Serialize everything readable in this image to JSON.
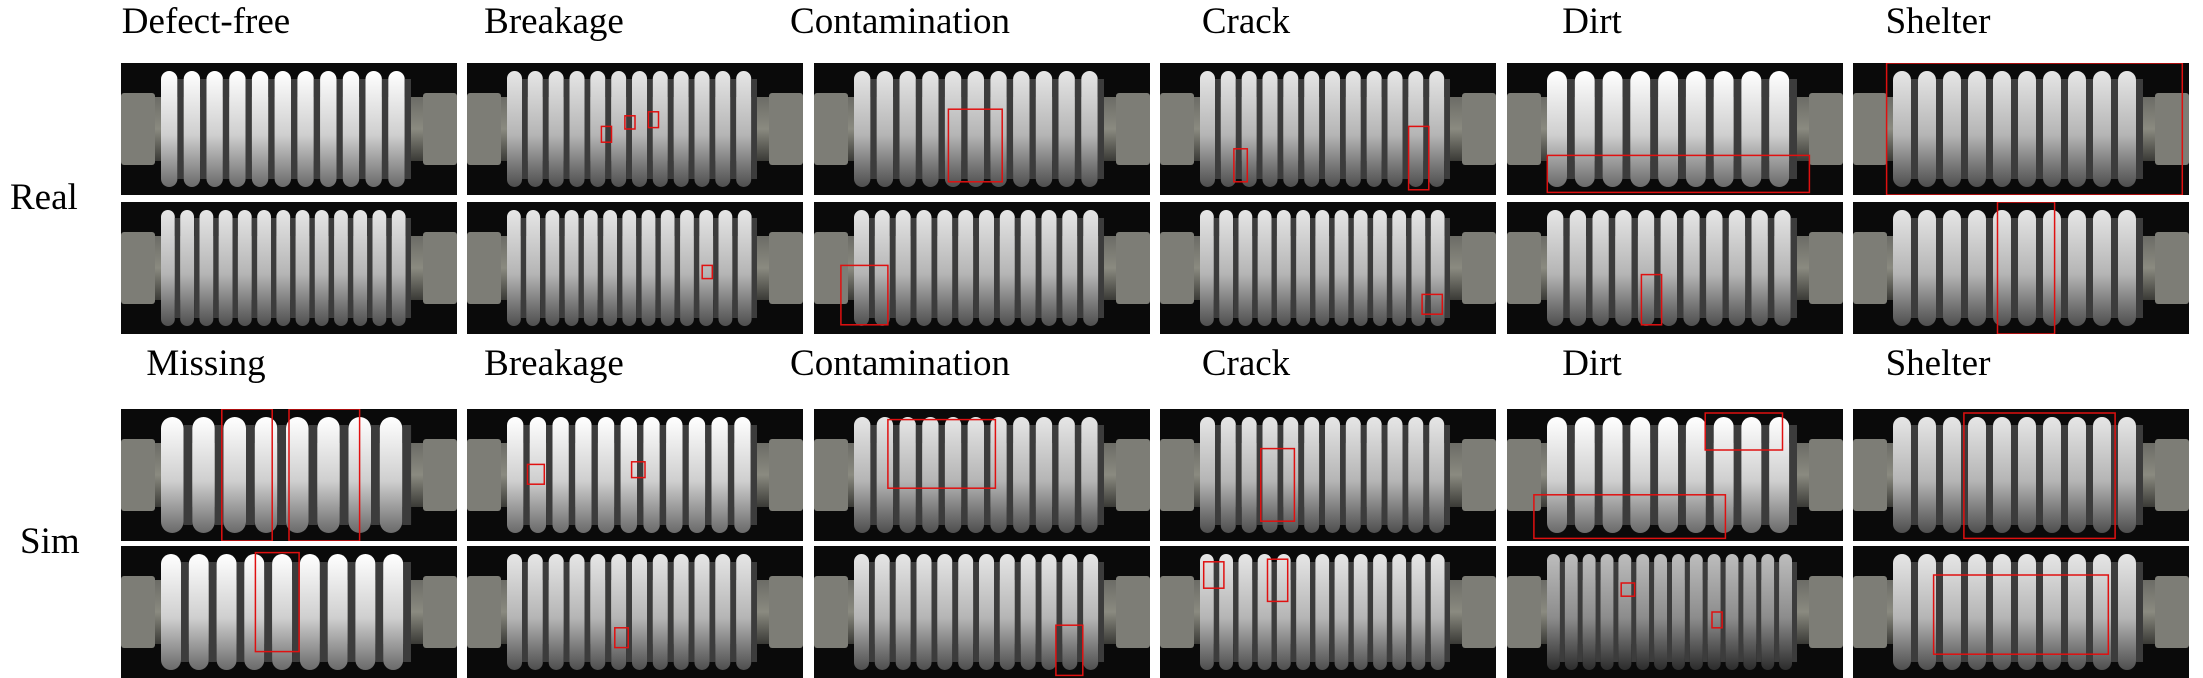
{
  "real_section": {
    "row_label": "Real",
    "column_titles": [
      "Defect-free",
      "Breakage",
      "Contamination",
      "Crack",
      "Dirt",
      "Shelter"
    ]
  },
  "sim_section": {
    "row_label": "Sim",
    "column_titles": [
      "Missing",
      "Breakage",
      "Contamination",
      "Crack",
      "Dirt",
      "Shelter"
    ]
  },
  "colors": {
    "annotation_box": "#e01010",
    "background": "#000000",
    "insulator_shed": "#d9d9d9",
    "rod": "#8a8a80"
  },
  "images": [
    {
      "name": "real-defect-free-1",
      "shed_count": 11,
      "brightness": "light",
      "boxes": []
    },
    {
      "name": "real-breakage-1",
      "shed_count": 12,
      "brightness": "mid",
      "boxes": [
        [
          0.4,
          0.48,
          0.03,
          0.12
        ],
        [
          0.47,
          0.4,
          0.03,
          0.1
        ],
        [
          0.54,
          0.37,
          0.03,
          0.12
        ]
      ]
    },
    {
      "name": "real-contamination-1",
      "shed_count": 11,
      "brightness": "mid",
      "boxes": [
        [
          0.4,
          0.35,
          0.16,
          0.55
        ]
      ]
    },
    {
      "name": "real-crack-1",
      "shed_count": 12,
      "brightness": "mid",
      "boxes": [
        [
          0.22,
          0.65,
          0.04,
          0.25
        ],
        [
          0.74,
          0.48,
          0.06,
          0.48
        ]
      ]
    },
    {
      "name": "real-dirt-1",
      "shed_count": 9,
      "brightness": "light",
      "boxes": [
        [
          0.12,
          0.7,
          0.78,
          0.28
        ]
      ]
    },
    {
      "name": "real-shelter-1",
      "shed_count": 10,
      "brightness": "mid",
      "boxes": [
        [
          0.1,
          0.0,
          0.88,
          1.0
        ]
      ]
    },
    {
      "name": "real-defect-free-2",
      "shed_count": 13,
      "brightness": "mid",
      "boxes": []
    },
    {
      "name": "real-breakage-2",
      "shed_count": 13,
      "brightness": "mid",
      "boxes": [
        [
          0.7,
          0.48,
          0.03,
          0.1
        ]
      ]
    },
    {
      "name": "real-contamination-2",
      "shed_count": 12,
      "brightness": "mid",
      "boxes": [
        [
          0.08,
          0.48,
          0.14,
          0.45
        ]
      ]
    },
    {
      "name": "real-crack-2",
      "shed_count": 13,
      "brightness": "mid",
      "boxes": [
        [
          0.78,
          0.7,
          0.06,
          0.15
        ]
      ]
    },
    {
      "name": "real-dirt-2",
      "shed_count": 11,
      "brightness": "mid",
      "boxes": [
        [
          0.4,
          0.55,
          0.06,
          0.38
        ]
      ]
    },
    {
      "name": "real-shelter-2",
      "shed_count": 10,
      "brightness": "mid",
      "boxes": [
        [
          0.43,
          0.0,
          0.17,
          1.0
        ]
      ]
    },
    {
      "name": "sim-missing-1",
      "shed_count": 8,
      "brightness": "light",
      "boxes": [
        [
          0.3,
          0.0,
          0.15,
          1.0
        ],
        [
          0.5,
          0.0,
          0.21,
          1.0
        ]
      ]
    },
    {
      "name": "sim-breakage-1",
      "shed_count": 11,
      "brightness": "light",
      "boxes": [
        [
          0.18,
          0.42,
          0.05,
          0.15
        ],
        [
          0.49,
          0.4,
          0.04,
          0.12
        ]
      ]
    },
    {
      "name": "sim-contamination-1",
      "shed_count": 11,
      "brightness": "mid",
      "boxes": [
        [
          0.22,
          0.08,
          0.32,
          0.52
        ]
      ]
    },
    {
      "name": "sim-crack-1",
      "shed_count": 12,
      "brightness": "mid",
      "boxes": [
        [
          0.3,
          0.3,
          0.1,
          0.55
        ]
      ]
    },
    {
      "name": "sim-dirt-1",
      "shed_count": 9,
      "brightness": "light",
      "boxes": [
        [
          0.08,
          0.65,
          0.57,
          0.33
        ],
        [
          0.59,
          0.03,
          0.23,
          0.28
        ]
      ]
    },
    {
      "name": "sim-shelter-1",
      "shed_count": 10,
      "brightness": "mid",
      "boxes": [
        [
          0.33,
          0.03,
          0.45,
          0.95
        ]
      ]
    },
    {
      "name": "sim-missing-2",
      "shed_count": 9,
      "brightness": "light",
      "boxes": [
        [
          0.4,
          0.05,
          0.13,
          0.75
        ]
      ]
    },
    {
      "name": "sim-breakage-2",
      "shed_count": 12,
      "brightness": "mid",
      "boxes": [
        [
          0.44,
          0.62,
          0.04,
          0.15
        ]
      ]
    },
    {
      "name": "sim-contamination-2",
      "shed_count": 12,
      "brightness": "mid",
      "boxes": [
        [
          0.72,
          0.6,
          0.08,
          0.38
        ]
      ]
    },
    {
      "name": "sim-crack-2",
      "shed_count": 13,
      "brightness": "mid",
      "boxes": [
        [
          0.13,
          0.12,
          0.06,
          0.2
        ],
        [
          0.32,
          0.1,
          0.06,
          0.32
        ]
      ]
    },
    {
      "name": "sim-dirt-2",
      "shed_count": 14,
      "brightness": "dark",
      "boxes": [
        [
          0.34,
          0.28,
          0.04,
          0.1
        ],
        [
          0.61,
          0.5,
          0.03,
          0.12
        ]
      ]
    },
    {
      "name": "sim-shelter-2",
      "shed_count": 10,
      "brightness": "mid",
      "boxes": [
        [
          0.24,
          0.22,
          0.52,
          0.6
        ]
      ]
    }
  ]
}
